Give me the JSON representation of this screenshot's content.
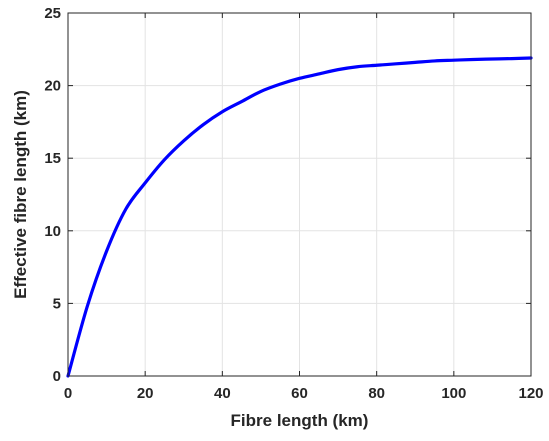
{
  "chart_data": {
    "type": "line",
    "xlabel": "Fibre length (km)",
    "ylabel": "Effective fibre length (km)",
    "xlim": [
      0,
      120
    ],
    "ylim": [
      0,
      25
    ],
    "xticks": [
      0,
      20,
      40,
      60,
      80,
      100,
      120
    ],
    "yticks": [
      0,
      5,
      10,
      15,
      20,
      25
    ],
    "xtick_labels": [
      "0",
      "20",
      "40",
      "60",
      "80",
      "100",
      "120"
    ],
    "ytick_labels": [
      "0",
      "5",
      "10",
      "15",
      "20",
      "25"
    ],
    "grid": true,
    "series": [
      {
        "color": "#0000ff",
        "x": [
          0,
          5,
          10,
          15,
          20,
          25,
          30,
          35,
          40,
          45,
          50,
          55,
          60,
          65,
          70,
          75,
          80,
          85,
          90,
          95,
          100,
          105,
          110,
          115,
          120
        ],
        "y": [
          0,
          4.8,
          8.6,
          11.5,
          13.3,
          14.9,
          16.2,
          17.3,
          18.2,
          18.9,
          19.6,
          20.1,
          20.5,
          20.8,
          21.1,
          21.3,
          21.4,
          21.5,
          21.6,
          21.7,
          21.75,
          21.8,
          21.83,
          21.86,
          21.9
        ]
      }
    ]
  }
}
